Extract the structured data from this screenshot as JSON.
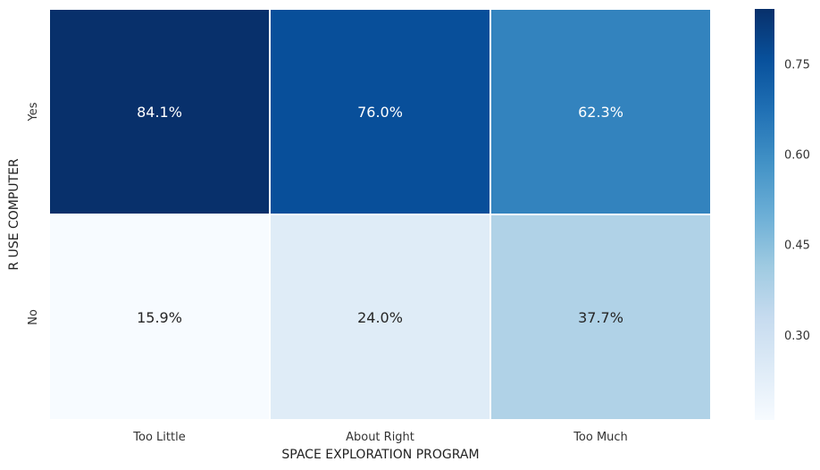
{
  "chart_data": {
    "type": "heatmap",
    "xlabel": "SPACE EXPLORATION PROGRAM",
    "ylabel": "R USE COMPUTER",
    "x_categories": [
      "Too Little",
      "About Right",
      "Too Much"
    ],
    "y_categories": [
      "Yes",
      "No"
    ],
    "values": [
      [
        0.841,
        0.76,
        0.623
      ],
      [
        0.159,
        0.24,
        0.377
      ]
    ],
    "annotations": [
      [
        "84.1%",
        "76.0%",
        "62.3%"
      ],
      [
        "15.9%",
        "24.0%",
        "37.7%"
      ]
    ],
    "colormap": "Blues",
    "colorbar": {
      "range": [
        0.159,
        0.841
      ],
      "ticks": [
        0.3,
        0.45,
        0.6,
        0.75
      ],
      "tick_labels": [
        "0.30",
        "0.45",
        "0.60",
        "0.75"
      ]
    },
    "grid": false
  }
}
